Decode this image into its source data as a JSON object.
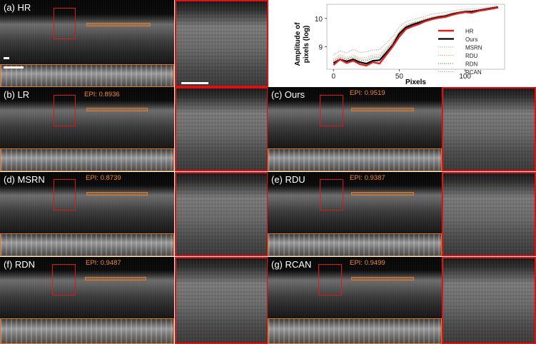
{
  "panels": {
    "hr": {
      "label": "(a) HR"
    },
    "lr": {
      "label": "(b) LR",
      "epi": "EPI: 0.8936"
    },
    "ours": {
      "label": "(c) Ours",
      "epi": "EPI: 0.9519"
    },
    "msrn": {
      "label": "(d) MSRN",
      "epi": "EPI: 0.8739"
    },
    "rdu": {
      "label": "(e) RDU",
      "epi": "EPI: 0.9387"
    },
    "rdn": {
      "label": "(f) RDN",
      "epi": "EPI: 0.9487"
    },
    "rcan": {
      "label": "(g) RCAN",
      "epi": "EPI: 0.9499"
    }
  },
  "chart_data": {
    "type": "line",
    "title": "",
    "xlabel": "Pixels",
    "ylabel": "Amplitude of pixels (log)",
    "ylabel_lines": [
      "Amplitude of",
      "pixels (log)"
    ],
    "xlim": [
      -5,
      130
    ],
    "ylim": [
      8.2,
      10.5
    ],
    "xticks": [
      0,
      50,
      100
    ],
    "yticks": [
      9,
      10
    ],
    "legend_position": "right",
    "x": [
      0,
      5,
      10,
      15,
      20,
      25,
      30,
      35,
      40,
      45,
      50,
      55,
      60,
      65,
      70,
      75,
      80,
      85,
      90,
      95,
      100,
      105,
      110,
      115,
      120,
      125
    ],
    "series": [
      {
        "name": "HR",
        "color": "#e02020",
        "style": "solid",
        "values": [
          8.35,
          8.55,
          8.42,
          8.5,
          8.38,
          8.33,
          8.45,
          8.4,
          8.7,
          9.0,
          9.35,
          9.62,
          9.72,
          9.8,
          9.9,
          9.97,
          10.02,
          10.05,
          10.12,
          10.18,
          10.22,
          10.2,
          10.26,
          10.3,
          10.34,
          10.38
        ]
      },
      {
        "name": "Ours",
        "color": "#000000",
        "style": "solid",
        "values": [
          8.42,
          8.55,
          8.48,
          8.55,
          8.45,
          8.4,
          8.5,
          8.52,
          8.78,
          9.05,
          9.45,
          9.68,
          9.78,
          9.85,
          9.93,
          10.0,
          10.05,
          10.08,
          10.15,
          10.2,
          10.24,
          10.24,
          10.28,
          10.32,
          10.36,
          10.4
        ]
      },
      {
        "name": "MSRN",
        "color": "#a0a0a0",
        "style": "dotted",
        "values": [
          8.7,
          8.85,
          8.78,
          8.9,
          8.8,
          8.82,
          8.88,
          8.9,
          9.12,
          9.35,
          9.7,
          9.88,
          9.95,
          10.02,
          10.08,
          10.15,
          10.18,
          10.22,
          10.26,
          10.3,
          10.32,
          10.34,
          10.36,
          10.38,
          10.42,
          10.45
        ]
      },
      {
        "name": "RDU",
        "color": "#e8a060",
        "style": "dotted",
        "values": [
          8.55,
          8.72,
          8.62,
          8.7,
          8.6,
          8.62,
          8.7,
          8.72,
          8.95,
          9.2,
          9.55,
          9.78,
          9.86,
          9.92,
          10.0,
          10.06,
          10.1,
          10.14,
          10.2,
          10.24,
          10.27,
          10.28,
          10.31,
          10.34,
          10.38,
          10.41
        ]
      },
      {
        "name": "RDN",
        "color": "#2a9a3a",
        "style": "dotted",
        "values": [
          8.48,
          8.62,
          8.55,
          8.62,
          8.52,
          8.5,
          8.6,
          8.62,
          8.85,
          9.12,
          9.5,
          9.72,
          9.82,
          9.88,
          9.96,
          10.02,
          10.07,
          10.1,
          10.17,
          10.22,
          10.25,
          10.26,
          10.29,
          10.33,
          10.37,
          10.4
        ]
      },
      {
        "name": "RCAN",
        "color": "#c090c0",
        "style": "dotted",
        "values": [
          8.5,
          8.66,
          8.58,
          8.66,
          8.56,
          8.55,
          8.64,
          8.66,
          8.9,
          9.16,
          9.52,
          9.74,
          9.84,
          9.9,
          9.98,
          10.04,
          10.08,
          10.12,
          10.18,
          10.23,
          10.26,
          10.27,
          10.3,
          10.34,
          10.38,
          10.41
        ]
      }
    ]
  }
}
